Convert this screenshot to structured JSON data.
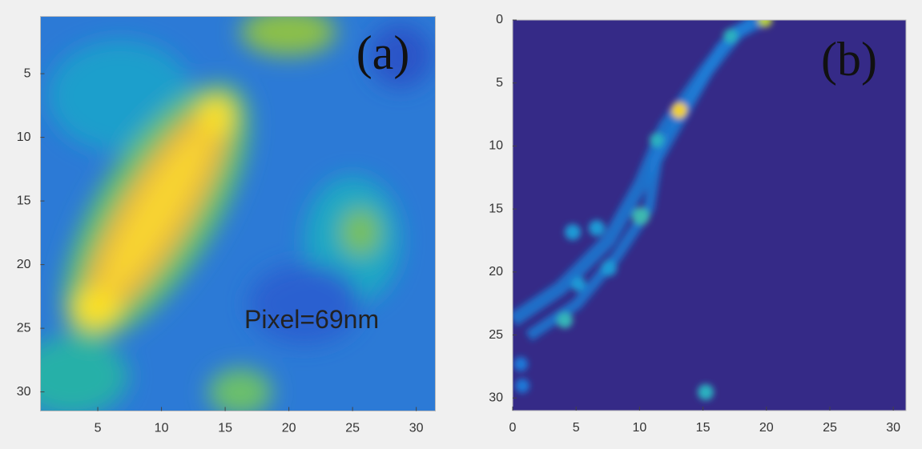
{
  "chart_data": [
    {
      "type": "heatmap",
      "label": "(a)",
      "annotation": "Pixel=69nm",
      "xlim": [
        0.5,
        31.5
      ],
      "ylim": [
        0.5,
        31.5
      ],
      "yreverse": true,
      "xticks": [
        5,
        10,
        15,
        20,
        25,
        30
      ],
      "yticks": [
        5,
        10,
        15,
        20,
        25,
        30
      ]
    },
    {
      "type": "heatmap",
      "label": "(b)",
      "xlim": [
        0,
        31
      ],
      "ylim": [
        0,
        31
      ],
      "yreverse": true,
      "xticks": [
        0,
        5,
        10,
        15,
        20,
        25,
        30
      ],
      "yticks": [
        0,
        5,
        10,
        15,
        20,
        25,
        30
      ]
    }
  ]
}
